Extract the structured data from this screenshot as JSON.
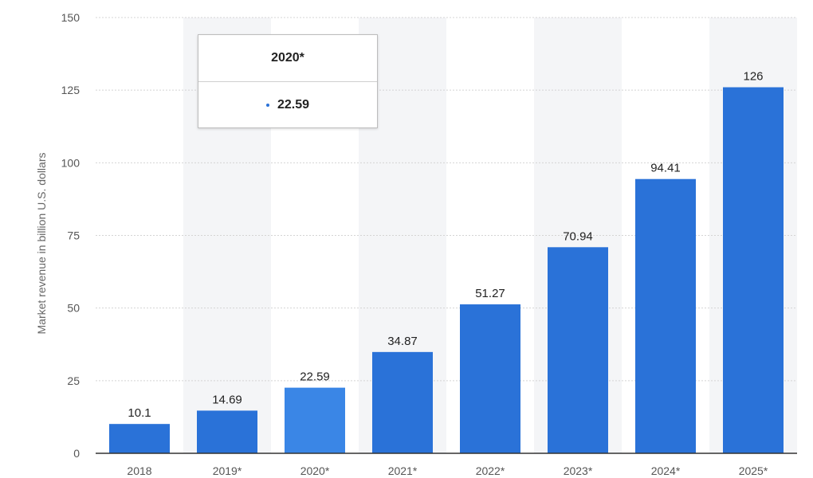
{
  "chart_data": {
    "type": "bar",
    "categories": [
      "2018",
      "2019*",
      "2020*",
      "2021*",
      "2022*",
      "2023*",
      "2024*",
      "2025*"
    ],
    "values": [
      10.1,
      14.69,
      22.59,
      34.87,
      51.27,
      70.94,
      94.41,
      126
    ],
    "value_labels": [
      "10.1",
      "14.69",
      "22.59",
      "34.87",
      "51.27",
      "70.94",
      "94.41",
      "126"
    ],
    "ylabel": "Market revenue in billion U.S. dollars",
    "xlabel": "",
    "ylim": [
      0,
      150
    ],
    "yticks": [
      0,
      25,
      50,
      75,
      100,
      125,
      150
    ],
    "grid": true,
    "highlighted_index": 2,
    "colors": {
      "bar": "#2a72d8",
      "bar_highlight": "#3a86e6",
      "grid": "#d4d4d4",
      "band": "#f4f5f7",
      "axis": "#333333"
    }
  },
  "tooltip": {
    "title": "2020*",
    "value": "22.59"
  }
}
